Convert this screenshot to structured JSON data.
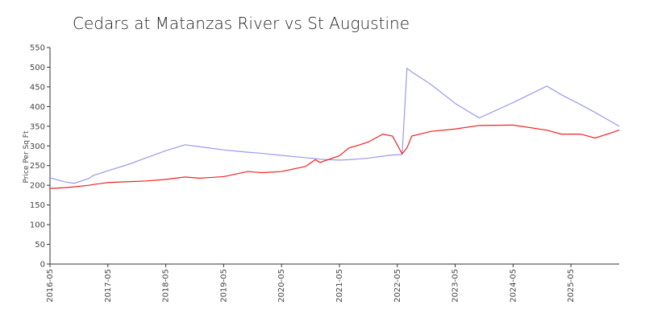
{
  "chart_data": {
    "type": "line",
    "title": "Cedars at Matanzas River vs St Augustine",
    "ylabel": "Price Per Sq Ft",
    "x": [
      "2016-05",
      "2016-08",
      "2016-10",
      "2017-01",
      "2017-02",
      "2017-05",
      "2017-09",
      "2018-01",
      "2018-05",
      "2018-09",
      "2018-12",
      "2019-05",
      "2019-10",
      "2019-12",
      "2020-01",
      "2020-05",
      "2020-10",
      "2020-12",
      "2021-01",
      "2021-05",
      "2021-07",
      "2021-09",
      "2021-11",
      "2022-02",
      "2022-04",
      "2022-06",
      "2022-07",
      "2022-08",
      "2022-12",
      "2023-05",
      "2023-10",
      "2024-05",
      "2024-12",
      "2025-03",
      "2025-07",
      "2025-10",
      "2026-03"
    ],
    "series": [
      {
        "color": "#9999ee",
        "values": [
          219,
          209,
          205,
          217,
          225,
          237,
          252,
          270,
          288,
          303,
          298,
          290,
          284,
          282,
          281,
          276,
          270,
          268,
          266,
          264,
          265,
          267,
          269,
          274,
          277,
          278,
          497,
          488,
          456,
          408,
          371,
          410,
          452,
          430,
          405,
          385,
          350
        ]
      },
      {
        "color": "#ee2222",
        "values": [
          192,
          194,
          196,
          200,
          202,
          207,
          209,
          211,
          215,
          221,
          218,
          222,
          235,
          233,
          232,
          235,
          248,
          265,
          258,
          275,
          295,
          302,
          310,
          330,
          325,
          280,
          295,
          325,
          337,
          343,
          352,
          353,
          340,
          330,
          330,
          320,
          340
        ]
      }
    ],
    "xlim": [
      "2016-05",
      "2026-03"
    ],
    "xticks": [
      "2016-05",
      "2017-05",
      "2018-05",
      "2019-05",
      "2020-05",
      "2021-05",
      "2022-05",
      "2023-05",
      "2024-05",
      "2025-05"
    ],
    "ylim": [
      0,
      550
    ],
    "yticks": [
      0,
      50,
      100,
      150,
      200,
      250,
      300,
      350,
      400,
      450,
      500,
      550
    ]
  }
}
